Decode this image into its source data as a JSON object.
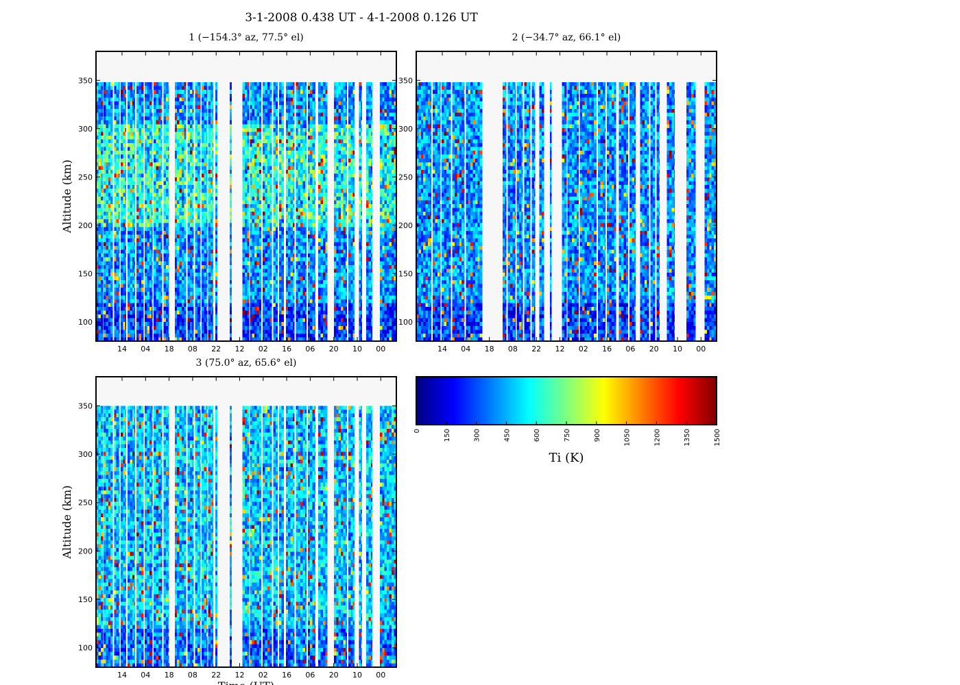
{
  "figure": {
    "title": "3-1-2008 0.438 UT - 4-1-2008 0.126 UT"
  },
  "colors": {
    "plot_background": "#f7f7f7",
    "axis": "#000000",
    "colormap": "jet",
    "jet_stops": [
      "#00007f",
      "#0000ff",
      "#007fff",
      "#00ffff",
      "#7fff7f",
      "#ffff00",
      "#ff7f00",
      "#ff0000",
      "#7f0000"
    ]
  },
  "chart_data": [
    {
      "type": "heatmap",
      "panel": "1",
      "title": "1 (−154.3° az, 77.5° el)",
      "xlabel": "",
      "ylabel": "Altitude (km)",
      "xticks": [
        "14",
        "04",
        "18",
        "08",
        "22",
        "12",
        "02",
        "16",
        "06",
        "20",
        "10",
        "00"
      ],
      "yticks": [
        100,
        150,
        200,
        250,
        300,
        350
      ],
      "ylim": [
        80,
        380
      ],
      "data_altitude_range": [
        80,
        348
      ],
      "value_range": [
        0,
        1500
      ],
      "data_column_blocks": [
        [
          0.0,
          0.023
        ],
        [
          0.025,
          0.055
        ],
        [
          0.06,
          0.078
        ],
        [
          0.082,
          0.1
        ],
        [
          0.105,
          0.13
        ],
        [
          0.135,
          0.158
        ],
        [
          0.162,
          0.188
        ],
        [
          0.192,
          0.22
        ],
        [
          0.225,
          0.242
        ],
        [
          0.262,
          0.3
        ],
        [
          0.305,
          0.325
        ],
        [
          0.33,
          0.348
        ],
        [
          0.352,
          0.37
        ],
        [
          0.373,
          0.39
        ],
        [
          0.397,
          0.403
        ],
        [
          0.445,
          0.452
        ],
        [
          0.488,
          0.51
        ],
        [
          0.512,
          0.55
        ],
        [
          0.555,
          0.585
        ],
        [
          0.59,
          0.605
        ],
        [
          0.61,
          0.625
        ],
        [
          0.632,
          0.66
        ],
        [
          0.665,
          0.7
        ],
        [
          0.705,
          0.73
        ],
        [
          0.74,
          0.77
        ],
        [
          0.792,
          0.835
        ],
        [
          0.84,
          0.86
        ],
        [
          0.875,
          0.885
        ],
        [
          0.9,
          0.92
        ],
        [
          0.945,
          1.0
        ]
      ],
      "pattern": "mostly blue (0-400 K) with cyan/green (500-900 K) concentrated at 200-300 km and scattered yellow/red high values"
    },
    {
      "type": "heatmap",
      "panel": "2",
      "title": "2 (−34.7° az, 66.1° el)",
      "xlabel": "",
      "ylabel": "",
      "xticks": [
        "14",
        "04",
        "18",
        "08",
        "22",
        "12",
        "02",
        "16",
        "06",
        "20",
        "10",
        "00"
      ],
      "yticks": [
        100,
        150,
        200,
        250,
        300,
        350
      ],
      "ylim": [
        80,
        380
      ],
      "data_altitude_range": [
        80,
        348
      ],
      "value_range": [
        0,
        1500
      ],
      "data_column_blocks": [
        [
          0.0,
          0.05
        ],
        [
          0.055,
          0.08
        ],
        [
          0.085,
          0.115
        ],
        [
          0.12,
          0.16
        ],
        [
          0.165,
          0.22
        ],
        [
          0.288,
          0.3
        ],
        [
          0.305,
          0.33
        ],
        [
          0.335,
          0.355
        ],
        [
          0.36,
          0.38
        ],
        [
          0.385,
          0.395
        ],
        [
          0.41,
          0.425
        ],
        [
          0.445,
          0.45
        ],
        [
          0.485,
          0.5
        ],
        [
          0.503,
          0.54
        ],
        [
          0.545,
          0.6
        ],
        [
          0.605,
          0.63
        ],
        [
          0.635,
          0.665
        ],
        [
          0.675,
          0.705
        ],
        [
          0.71,
          0.73
        ],
        [
          0.745,
          0.775
        ],
        [
          0.78,
          0.795
        ],
        [
          0.8,
          0.81
        ],
        [
          0.835,
          0.86
        ],
        [
          0.9,
          0.93
        ],
        [
          0.96,
          1.0
        ]
      ],
      "pattern": "mostly blue with scattered cyan, yellow and red values"
    },
    {
      "type": "heatmap",
      "panel": "3",
      "title": "3 (75.0° az, 65.6° el)",
      "xlabel": "Time (UT)",
      "ylabel": "Altitude (km)",
      "xticks": [
        "14",
        "04",
        "18",
        "08",
        "22",
        "12",
        "02",
        "16",
        "06",
        "20",
        "10",
        "00"
      ],
      "yticks": [
        100,
        150,
        200,
        250,
        300,
        350
      ],
      "ylim": [
        80,
        380
      ],
      "data_altitude_range": [
        80,
        350
      ],
      "value_range": [
        0,
        1500
      ],
      "data_column_blocks": [
        [
          0.0,
          0.023
        ],
        [
          0.025,
          0.055
        ],
        [
          0.06,
          0.078
        ],
        [
          0.082,
          0.1
        ],
        [
          0.105,
          0.13
        ],
        [
          0.135,
          0.158
        ],
        [
          0.162,
          0.188
        ],
        [
          0.192,
          0.22
        ],
        [
          0.225,
          0.242
        ],
        [
          0.262,
          0.3
        ],
        [
          0.305,
          0.325
        ],
        [
          0.33,
          0.348
        ],
        [
          0.352,
          0.37
        ],
        [
          0.373,
          0.39
        ],
        [
          0.397,
          0.403
        ],
        [
          0.445,
          0.452
        ],
        [
          0.488,
          0.51
        ],
        [
          0.512,
          0.55
        ],
        [
          0.555,
          0.585
        ],
        [
          0.59,
          0.605
        ],
        [
          0.61,
          0.625
        ],
        [
          0.632,
          0.66
        ],
        [
          0.665,
          0.7
        ],
        [
          0.705,
          0.73
        ],
        [
          0.74,
          0.77
        ],
        [
          0.792,
          0.835
        ],
        [
          0.84,
          0.86
        ],
        [
          0.875,
          0.885
        ],
        [
          0.9,
          0.92
        ],
        [
          0.945,
          1.0
        ]
      ],
      "pattern": "mostly blue with frequent cyan and scattered yellow/red values"
    }
  ],
  "colorbar": {
    "label": "Ti (K)",
    "ticks": [
      0,
      150,
      300,
      450,
      600,
      750,
      900,
      1050,
      1200,
      1350,
      1500
    ],
    "range": [
      0,
      1500
    ]
  }
}
